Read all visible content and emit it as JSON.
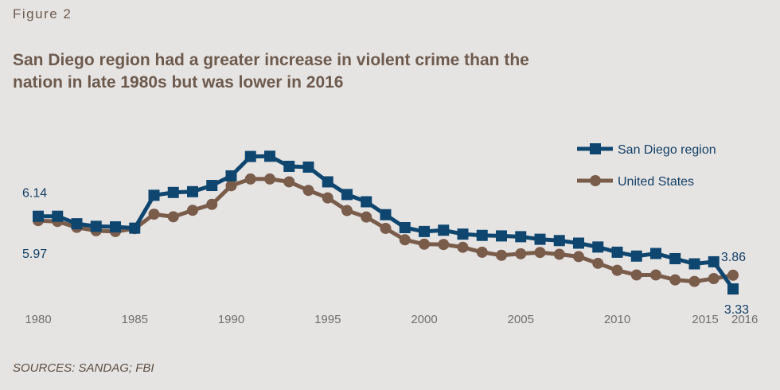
{
  "figure_label": "Figure 2",
  "chart_data": {
    "type": "line",
    "title": "San Diego region had a greater increase in violent crime than the nation in late 1980s but was lower in 2016",
    "xlabel": "",
    "ylabel": "",
    "x": [
      1980,
      1981,
      1982,
      1983,
      1984,
      1985,
      1986,
      1987,
      1988,
      1989,
      1990,
      1991,
      1992,
      1993,
      1994,
      1995,
      1996,
      1997,
      1998,
      1999,
      2000,
      2001,
      2002,
      2003,
      2004,
      2005,
      2006,
      2007,
      2008,
      2009,
      2010,
      2011,
      2012,
      2013,
      2014,
      2015,
      2016
    ],
    "x_ticks": [
      "1980",
      "1985",
      "1990",
      "1995",
      "2000",
      "2005",
      "2010",
      "2015",
      "2016"
    ],
    "ylim": [
      2.5,
      10.5
    ],
    "grid": false,
    "legend_position": "top-right",
    "series": [
      {
        "name": "San Diego region",
        "color": "#0e4670",
        "marker": "square",
        "values": [
          6.14,
          6.14,
          5.85,
          5.75,
          5.73,
          5.68,
          6.95,
          7.06,
          7.09,
          7.33,
          7.7,
          8.45,
          8.46,
          8.07,
          8.04,
          7.47,
          6.98,
          6.7,
          6.2,
          5.7,
          5.55,
          5.6,
          5.45,
          5.4,
          5.38,
          5.35,
          5.25,
          5.2,
          5.1,
          4.95,
          4.75,
          4.6,
          4.7,
          4.5,
          4.3,
          4.38,
          3.33
        ],
        "start_label": "6.14",
        "end_label": "3.33"
      },
      {
        "name": "United States",
        "color": "#7a5c4b",
        "marker": "circle",
        "values": [
          5.97,
          5.94,
          5.71,
          5.58,
          5.55,
          5.66,
          6.22,
          6.12,
          6.37,
          6.6,
          7.32,
          7.58,
          7.58,
          7.47,
          7.14,
          6.85,
          6.36,
          6.11,
          5.67,
          5.23,
          5.06,
          5.05,
          4.94,
          4.75,
          4.63,
          4.69,
          4.74,
          4.67,
          4.58,
          4.32,
          4.05,
          3.87,
          3.87,
          3.68,
          3.62,
          3.73,
          3.86
        ],
        "start_label": "5.97",
        "end_label": "3.86"
      }
    ]
  },
  "source": "SOURCES: SANDAG; FBI"
}
